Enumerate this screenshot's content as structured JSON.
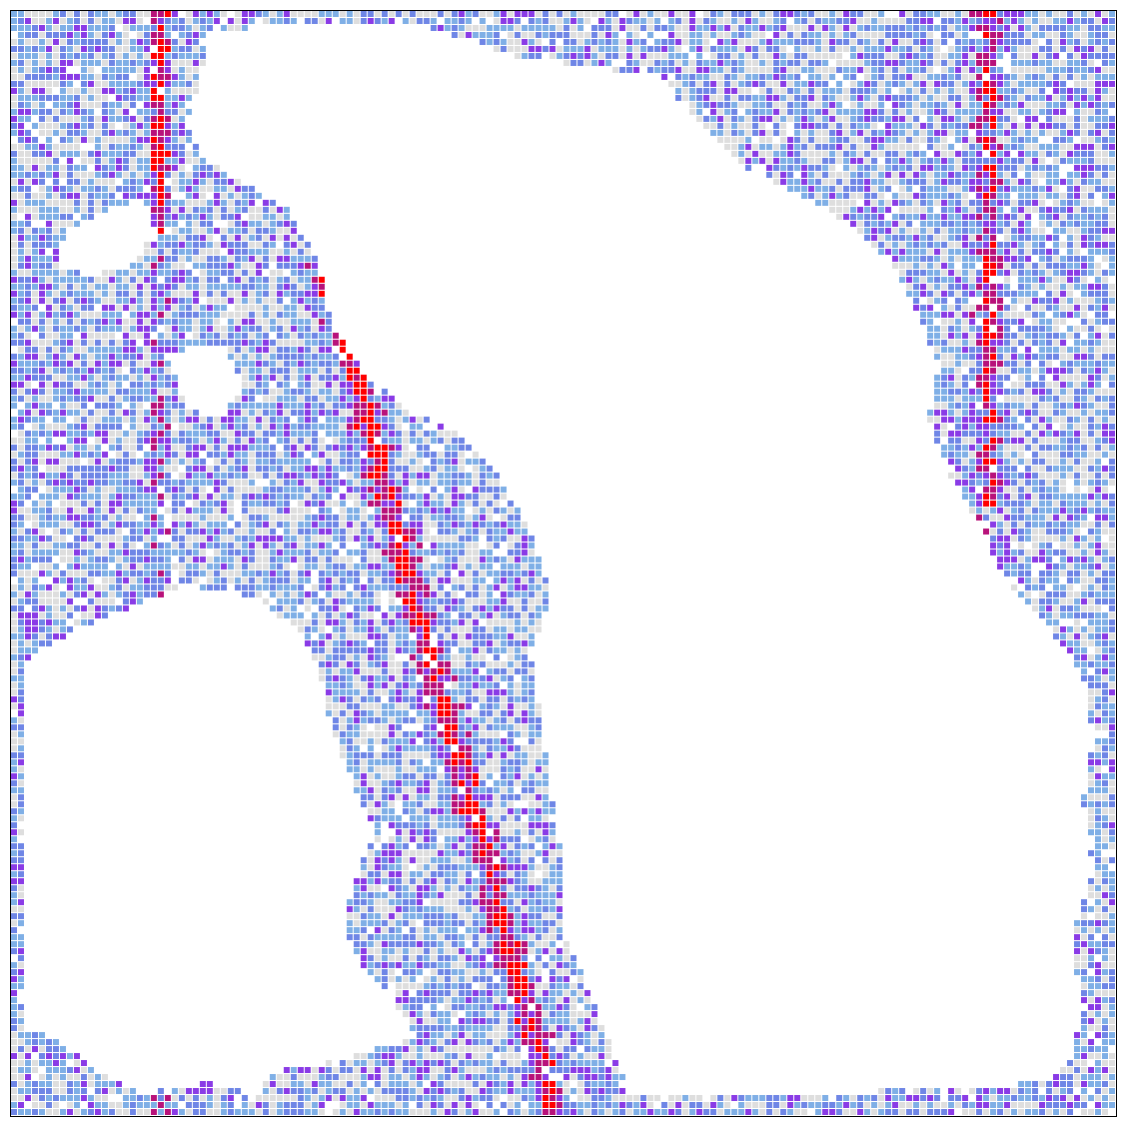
{
  "map": {
    "legend_colors": {
      "empty": "#ffffff",
      "level_1": "#dedede",
      "level_2": "#7fafe6",
      "level_3": "#6f86e6",
      "level_4": "#8a3be6",
      "level_5": "#b8127a",
      "level_6": "#ff0000"
    },
    "background": "#ffffff",
    "frame_color": "#000000",
    "grid_columns": 158,
    "grid_rows": 158,
    "levels_shown": 6,
    "noise_seed": 7
  }
}
